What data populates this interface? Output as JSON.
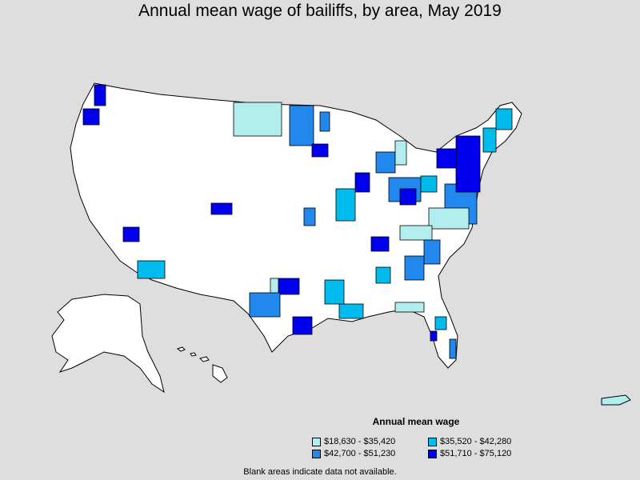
{
  "title": "Annual mean wage of bailiffs, by area, May 2019",
  "legend": {
    "title": "Annual mean wage",
    "items": [
      {
        "label": "$18,630 - $35,420",
        "color": "#b3eeee"
      },
      {
        "label": "$35,520 - $42,280",
        "color": "#00bbee"
      },
      {
        "label": "$42,700 - $51,230",
        "color": "#2288ee"
      },
      {
        "label": "$51,710 - $75,120",
        "color": "#0000ee"
      }
    ]
  },
  "note": "Blank areas indicate data not available.",
  "colors": {
    "background": "#dedede",
    "land": "#ffffff",
    "border": "#000000"
  }
}
